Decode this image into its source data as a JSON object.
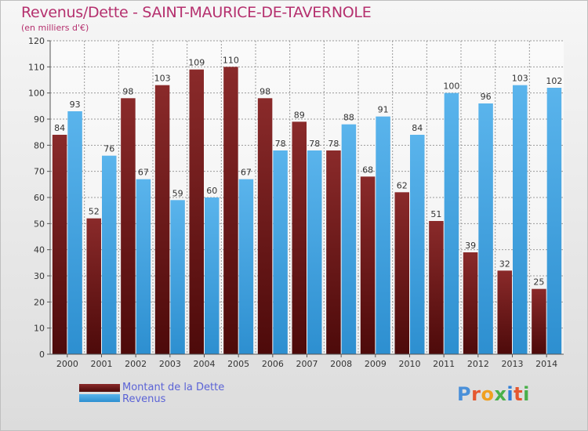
{
  "header": {
    "title": "Revenus/Dette - SAINT-MAURICE-DE-TAVERNOLE",
    "subtitle": "(en milliers d'€)"
  },
  "legend": {
    "items": [
      {
        "label": "Montant de la Dette"
      },
      {
        "label": "Revenus"
      }
    ]
  },
  "logo": {
    "text": "Proxiti",
    "colors": [
      "#4a90d9",
      "#e5572f",
      "#f0a020",
      "#49b04a",
      "#2f7ed8",
      "#e5572f",
      "#49b04a"
    ]
  },
  "chart_data": {
    "type": "bar",
    "categories": [
      "2000",
      "2001",
      "2002",
      "2003",
      "2004",
      "2005",
      "2006",
      "2007",
      "2008",
      "2009",
      "2010",
      "2011",
      "2012",
      "2013",
      "2014"
    ],
    "series": [
      {
        "name": "Montant de la Dette",
        "color": "#7a1c1c",
        "values": [
          84,
          52,
          98,
          103,
          109,
          110,
          98,
          89,
          78,
          68,
          62,
          51,
          39,
          32,
          25
        ]
      },
      {
        "name": "Revenus",
        "color": "#3d9fe0",
        "values": [
          93,
          76,
          67,
          59,
          60,
          67,
          78,
          78,
          88,
          91,
          84,
          100,
          96,
          103,
          102
        ]
      }
    ],
    "yticks": [
      0,
      10,
      20,
      30,
      40,
      50,
      60,
      70,
      80,
      90,
      100,
      110,
      120
    ],
    "ylim": [
      0,
      120
    ],
    "grid": true,
    "legend": "bottom-left"
  }
}
